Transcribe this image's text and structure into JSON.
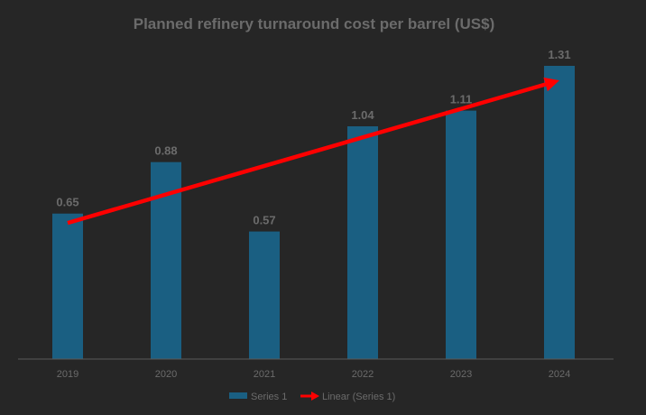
{
  "chart_data": {
    "type": "bar",
    "title": "Planned refinery turnaround cost per barrel (US$)",
    "categories": [
      "2019",
      "2020",
      "2021",
      "2022",
      "2023",
      "2024"
    ],
    "series": [
      {
        "name": "Series 1",
        "values": [
          0.65,
          0.88,
          0.57,
          1.04,
          1.11,
          1.31
        ]
      }
    ],
    "trendline": {
      "name": "Linear (Series 1)",
      "type": "linear"
    },
    "data_label_text": [
      "0.65",
      "0.88",
      "0.57",
      "1.04",
      "1.11",
      "1.31"
    ],
    "legend": [
      "Series 1",
      "Linear (Series 1)"
    ],
    "legend_position": "bottom",
    "ylim": [
      0,
      1.31
    ],
    "grid": false,
    "colors": {
      "bar": "#1a5f82",
      "trend": "#ff0000",
      "background": "#262626"
    }
  }
}
